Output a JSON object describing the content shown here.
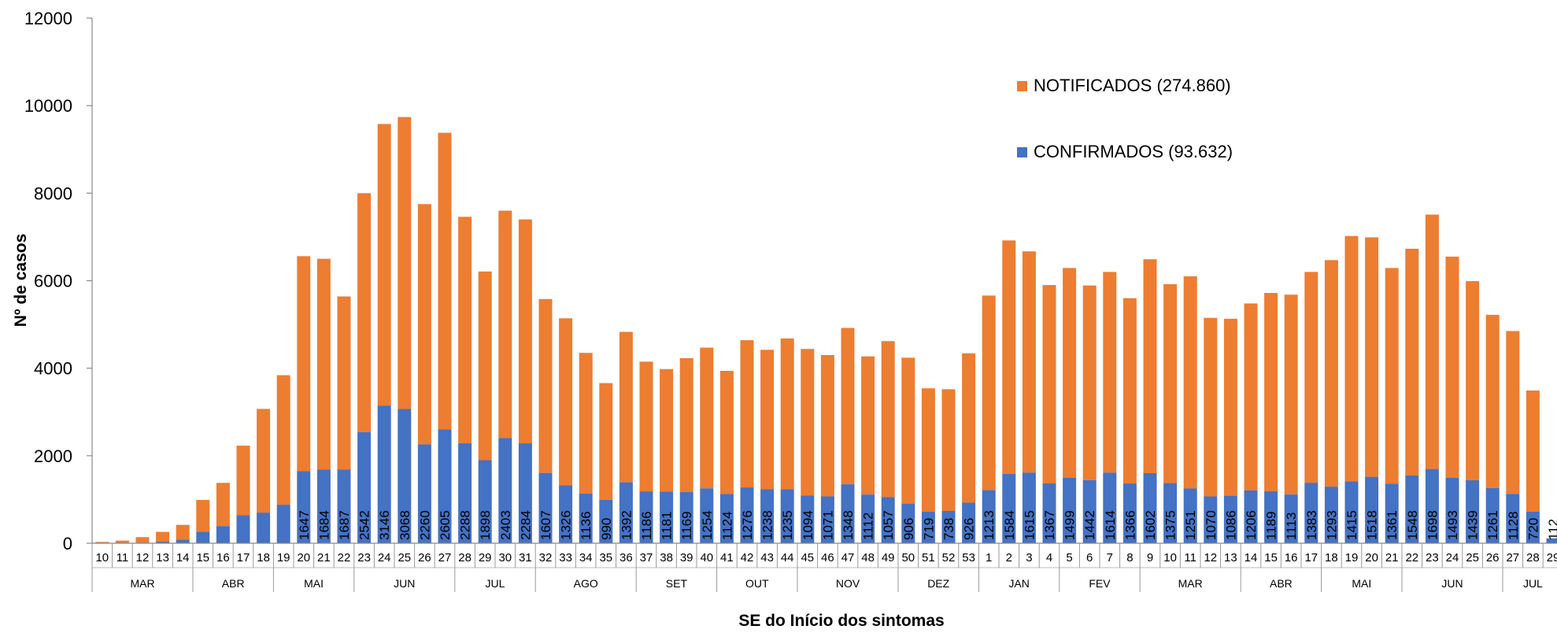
{
  "chart_data": {
    "type": "bar",
    "stacked": true,
    "title": "",
    "xlabel": "SE do Início dos sintomas",
    "ylabel": "Nº de casos",
    "ylim": [
      0,
      12000
    ],
    "yticks": [
      "0",
      "2000",
      "4000",
      "6000",
      "8000",
      "10000",
      "12000"
    ],
    "grid": false,
    "legend_position": "top-right",
    "categories": [
      "10",
      "11",
      "12",
      "13",
      "14",
      "15",
      "16",
      "17",
      "18",
      "19",
      "20",
      "21",
      "22",
      "23",
      "24",
      "25",
      "26",
      "27",
      "28",
      "29",
      "30",
      "31",
      "32",
      "33",
      "34",
      "35",
      "36",
      "37",
      "38",
      "39",
      "40",
      "41",
      "42",
      "43",
      "44",
      "45",
      "46",
      "47",
      "48",
      "49",
      "50",
      "51",
      "52",
      "53",
      "1",
      "2",
      "3",
      "4",
      "5",
      "6",
      "7",
      "8",
      "9",
      "10",
      "11",
      "12",
      "13",
      "14",
      "15",
      "16",
      "17",
      "18",
      "19",
      "20",
      "21",
      "22",
      "23",
      "24",
      "25",
      "26",
      "27",
      "28",
      "29"
    ],
    "months": [
      {
        "label": "MAR",
        "start": 0,
        "count": 5
      },
      {
        "label": "ABR",
        "start": 5,
        "count": 4
      },
      {
        "label": "MAI",
        "start": 9,
        "count": 4
      },
      {
        "label": "JUN",
        "start": 13,
        "count": 5
      },
      {
        "label": "JUL",
        "start": 18,
        "count": 4
      },
      {
        "label": "AGO",
        "start": 22,
        "count": 5
      },
      {
        "label": "SET",
        "start": 27,
        "count": 4
      },
      {
        "label": "OUT",
        "start": 31,
        "count": 4
      },
      {
        "label": "NOV",
        "start": 35,
        "count": 5
      },
      {
        "label": "DEZ",
        "start": 40,
        "count": 4
      },
      {
        "label": "JAN",
        "start": 44,
        "count": 4
      },
      {
        "label": "FEV",
        "start": 48,
        "count": 4
      },
      {
        "label": "MAR",
        "start": 52,
        "count": 5
      },
      {
        "label": "ABR",
        "start": 57,
        "count": 4
      },
      {
        "label": "MAI",
        "start": 61,
        "count": 4
      },
      {
        "label": "JUN",
        "start": 65,
        "count": 5
      },
      {
        "label": "JUL",
        "start": 70,
        "count": 3
      }
    ],
    "series": [
      {
        "name": "CONFIRMADOS (93.632)",
        "color": "#4472C4",
        "values": [
          5,
          10,
          15,
          40,
          80,
          260,
          390,
          640,
          700,
          880,
          1647,
          1684,
          1687,
          2542,
          3146,
          3068,
          2260,
          2605,
          2288,
          1898,
          2403,
          2284,
          1607,
          1326,
          1136,
          990,
          1392,
          1186,
          1181,
          1169,
          1254,
          1124,
          1276,
          1238,
          1235,
          1094,
          1071,
          1348,
          1112,
          1057,
          906,
          719,
          738,
          926,
          1213,
          1584,
          1615,
          1367,
          1499,
          1442,
          1614,
          1366,
          1602,
          1375,
          1251,
          1070,
          1086,
          1206,
          1189,
          1113,
          1383,
          1293,
          1415,
          1518,
          1361,
          1548,
          1698,
          1493,
          1439,
          1261,
          1128,
          720,
          112
        ],
        "labels": [
          "",
          "",
          "",
          "",
          "",
          "",
          "",
          "",
          "",
          "",
          "1647",
          "1684",
          "1687",
          "2542",
          "3146",
          "3068",
          "2260",
          "2605",
          "2288",
          "1898",
          "2403",
          "2284",
          "1607",
          "1326",
          "1136",
          "990",
          "1392",
          "1186",
          "1181",
          "1169",
          "1254",
          "1124",
          "1276",
          "1238",
          "1235",
          "1094",
          "1071",
          "1348",
          "1112",
          "1057",
          "906",
          "719",
          "738",
          "926",
          "1213",
          "1584",
          "1615",
          "1367",
          "1499",
          "1442",
          "1614",
          "1366",
          "1602",
          "1375",
          "1251",
          "1070",
          "1086",
          "1206",
          "1189",
          "1113",
          "1383",
          "1293",
          "1415",
          "1518",
          "1361",
          "1548",
          "1698",
          "1493",
          "1439",
          "1261",
          "1128",
          "720",
          "112"
        ]
      },
      {
        "name": "NOTIFICADOS (274.860)",
        "color": "#ED7D31",
        "totals": [
          30,
          60,
          140,
          260,
          420,
          990,
          1380,
          2230,
          3070,
          3840,
          6560,
          6500,
          5640,
          8000,
          9580,
          9740,
          7750,
          9380,
          7460,
          6210,
          7600,
          7400,
          5580,
          5140,
          4350,
          3660,
          4830,
          4150,
          3980,
          4230,
          4470,
          3940,
          4640,
          4420,
          4680,
          4440,
          4300,
          4920,
          4270,
          4620,
          4240,
          3540,
          3520,
          4340,
          5660,
          6920,
          6670,
          5900,
          6290,
          5890,
          6200,
          5600,
          6490,
          5920,
          6100,
          5150,
          5130,
          5480,
          5720,
          5680,
          6200,
          6470,
          7020,
          6990,
          6290,
          6730,
          7510,
          6550,
          5990,
          5220,
          4850,
          3490,
          0
        ]
      }
    ]
  }
}
